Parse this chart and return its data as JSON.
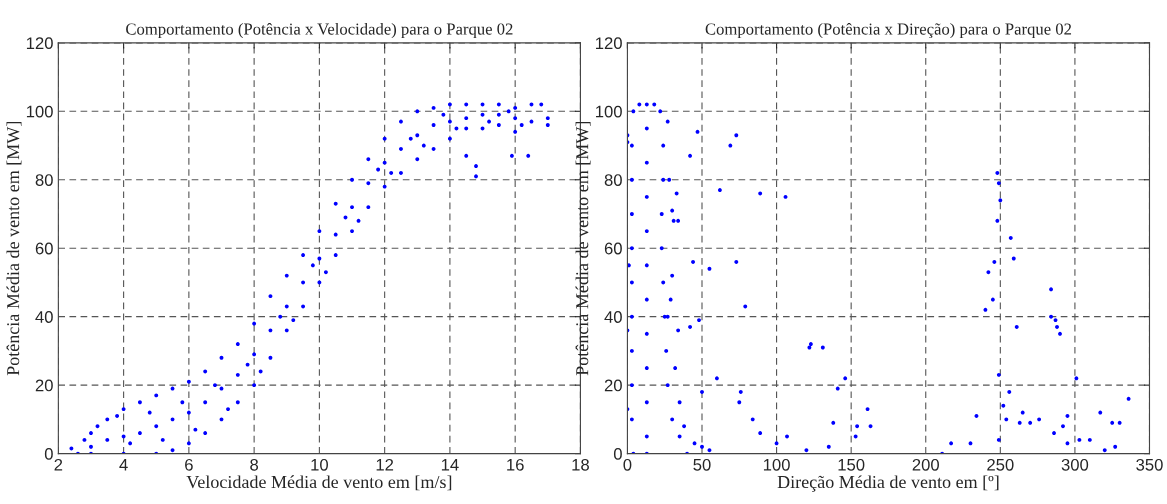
{
  "chart_data": [
    {
      "type": "scatter",
      "title": "Comportamento (Potência x Velocidade) para o Parque 02",
      "xlabel": "Velocidade Média de vento em [m/s]",
      "ylabel": "Potência Média de vento em [MW]",
      "xlim": [
        2,
        18
      ],
      "xticks": [
        2,
        4,
        6,
        8,
        10,
        12,
        14,
        16,
        18
      ],
      "ylim": [
        0,
        120
      ],
      "yticks": [
        0,
        20,
        40,
        60,
        80,
        100,
        120
      ],
      "grid": true,
      "marker": "circle",
      "series": [
        {
          "color": "#0000ff",
          "x": [
            2.6,
            3,
            4,
            5,
            5.5,
            6,
            6.5,
            7,
            7.5,
            8,
            8.5,
            9,
            9.5,
            10,
            10.5,
            11,
            11.5,
            12,
            12.5,
            13,
            13.5,
            14,
            14.5,
            15,
            15.5,
            16,
            2.4,
            2.8,
            3,
            3.5,
            4,
            4.5,
            5,
            5.5,
            6,
            6.5,
            7,
            7.5,
            8,
            8.5,
            9,
            9.5,
            10,
            10.5,
            11,
            11.5,
            12,
            12.5,
            13,
            13.5,
            14,
            14.5,
            15,
            15.5,
            16,
            16.5,
            16.8,
            17,
            3,
            3.5,
            4,
            4.5,
            5,
            5.5,
            6,
            6.5,
            7,
            7.5,
            8,
            8.5,
            9,
            9.5,
            10,
            10.5,
            11,
            11.5,
            12,
            12.5,
            13,
            13.5,
            14,
            14.5,
            15,
            15.5,
            16,
            16.5,
            17,
            14.8,
            14.8,
            15.9,
            16.4,
            14.5,
            3.2,
            3.8,
            4.2,
            4.8,
            5.2,
            5.8,
            6.2,
            6.8,
            7.2,
            7.8,
            8.2,
            8.8,
            9.2,
            9.8,
            10.2,
            10.8,
            11.2,
            11.8,
            12.2,
            12.8,
            13.2,
            13.8,
            14.2,
            15.2,
            15.8,
            16.2
          ],
          "values": [
            0,
            0,
            0,
            0,
            1,
            3,
            6,
            10,
            15,
            20,
            28,
            36,
            43,
            50,
            58,
            65,
            72,
            78,
            82,
            86,
            89,
            92,
            95,
            95,
            96,
            94,
            1.5,
            4,
            6,
            10,
            13,
            15,
            17,
            19,
            21,
            24,
            28,
            32,
            38,
            46,
            52,
            58,
            65,
            73,
            80,
            86,
            92,
            97,
            100,
            101,
            102,
            102,
            102,
            102,
            101,
            102,
            102,
            98,
            2,
            4,
            5,
            6,
            8,
            10,
            12,
            15,
            19,
            23,
            29,
            36,
            43,
            50,
            57,
            64,
            72,
            79,
            85,
            89,
            93,
            96,
            97,
            98,
            99,
            99,
            98,
            97,
            96,
            81,
            84,
            87,
            87,
            87,
            8,
            11,
            3,
            12,
            4,
            15,
            7,
            20,
            13,
            26,
            24,
            40,
            39,
            55,
            53,
            69,
            68,
            83,
            82,
            92,
            90,
            99,
            95,
            97,
            100,
            96
          ]
        }
      ]
    },
    {
      "type": "scatter",
      "title": "Comportamento (Potência x Direção) para o Parque 02",
      "xlabel": "Direção Média de vento em [º]",
      "ylabel": "Potência Média de vento em [MW]",
      "xlim": [
        0,
        350
      ],
      "xticks": [
        0,
        50,
        100,
        150,
        200,
        250,
        300,
        350
      ],
      "ylim": [
        0,
        120
      ],
      "yticks": [
        0,
        20,
        40,
        60,
        80,
        100,
        120
      ],
      "grid": true,
      "marker": "circle",
      "series": [
        {
          "color": "#0000ff",
          "x": [
            4,
            3,
            3,
            3,
            3,
            3,
            3,
            3,
            3,
            3,
            4,
            13,
            13,
            13,
            13,
            13,
            13,
            13,
            13,
            13,
            13,
            13,
            13,
            22,
            24,
            24,
            23,
            23,
            24,
            25,
            26,
            27,
            30,
            35,
            40,
            0,
            0,
            1,
            0,
            0,
            8,
            18,
            27,
            28,
            30,
            31,
            33,
            34,
            30,
            29,
            27,
            34,
            32,
            35,
            38,
            45,
            50,
            55,
            47,
            42,
            69,
            73,
            62,
            89,
            106,
            44,
            73,
            55,
            79,
            42,
            48,
            60,
            76,
            75,
            50,
            84,
            89,
            100,
            107,
            120,
            122,
            123,
            131,
            141,
            146,
            138,
            135,
            154,
            161,
            163,
            153,
            211,
            217,
            230,
            234,
            240,
            242,
            245,
            246,
            248,
            248,
            249,
            250,
            249,
            249,
            252,
            254,
            256,
            257,
            259,
            261,
            263,
            265,
            270,
            276,
            284,
            284,
            287,
            288,
            290,
            286,
            292,
            295,
            301,
            303,
            310,
            317,
            325,
            330,
            336,
            320,
            327,
            295
          ],
          "values": [
            100,
            90,
            80,
            70,
            60,
            50,
            40,
            30,
            20,
            10,
            0,
            102,
            95,
            85,
            75,
            65,
            55,
            45,
            35,
            25,
            15,
            5,
            0,
            100,
            90,
            80,
            70,
            60,
            50,
            40,
            30,
            20,
            10,
            5,
            0,
            93,
            91,
            55,
            36,
            13,
            102,
            102,
            97,
            80,
            71,
            68,
            76,
            68,
            52,
            45,
            40,
            36,
            25,
            15,
            8,
            3,
            2,
            1,
            94,
            87,
            90,
            93,
            77,
            76,
            75,
            56,
            56,
            54,
            43,
            37,
            39,
            22,
            18,
            15,
            18,
            10,
            6,
            3,
            5,
            1,
            31,
            32,
            31,
            19,
            22,
            9,
            2,
            8,
            13,
            8,
            5,
            0,
            3,
            3,
            11,
            42,
            53,
            45,
            56,
            68,
            82,
            79,
            74,
            23,
            4,
            14,
            10,
            18,
            63,
            57,
            37,
            9,
            12,
            9,
            10,
            48,
            40,
            39,
            37,
            35,
            6,
            8,
            11,
            22,
            4,
            4,
            12,
            9,
            9,
            16,
            1,
            2,
            3
          ]
        }
      ]
    }
  ]
}
